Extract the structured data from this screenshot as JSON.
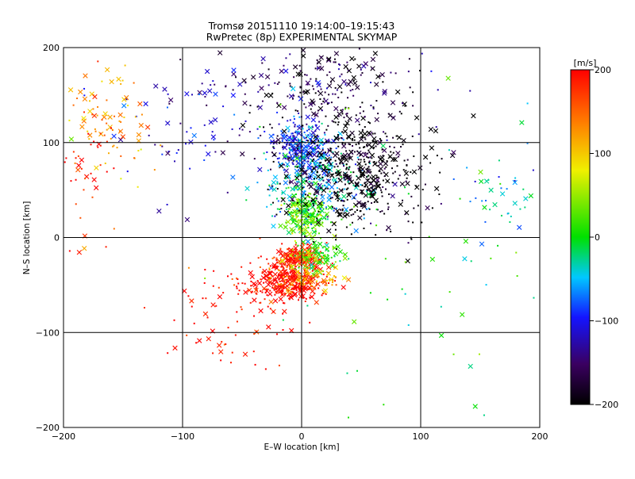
{
  "chart_data": {
    "type": "scatter",
    "title": "Tromsø 20151110 19:14:00–19:15:43",
    "subtitle": "RwPretec (8p) EXPERIMENTAL SKYMAP",
    "xlabel": "E–W location [km]",
    "ylabel": "N–S location [km]",
    "xlim": [
      -200,
      200
    ],
    "ylim": [
      -200,
      200
    ],
    "xticks": [
      "−200",
      "−100",
      "0",
      "100",
      "200"
    ],
    "yticks": [
      "200",
      "100",
      "0",
      "−100",
      "−200"
    ],
    "grid": true,
    "marker_types": [
      "x",
      "dot"
    ],
    "colorbar": {
      "label": "[m/s]",
      "range": [
        -200,
        200
      ],
      "ticks": [
        "200",
        "100",
        "0",
        "−100",
        "−200"
      ],
      "colormap": [
        "#000000",
        "#3a0060",
        "#1414ff",
        "#00c8ff",
        "#00e000",
        "#f0f000",
        "#ff8000",
        "#ff0000"
      ]
    },
    "clusters": [
      {
        "center": [
          -12,
          -45
        ],
        "spread": [
          15,
          11
        ],
        "value": 200,
        "count": 360
      },
      {
        "center": [
          -2,
          -20
        ],
        "spread": [
          8,
          6
        ],
        "value": 195,
        "count": 170
      },
      {
        "center": [
          12,
          -20
        ],
        "spread": [
          11,
          9
        ],
        "value": 20,
        "count": 110
      },
      {
        "center": [
          5,
          -38
        ],
        "spread": [
          15,
          10
        ],
        "value": 120,
        "count": 90
      },
      {
        "center": [
          3,
          25
        ],
        "spread": [
          9,
          12
        ],
        "value": 30,
        "count": 230
      },
      {
        "center": [
          -1,
          95
        ],
        "spread": [
          11,
          14
        ],
        "value": -95,
        "count": 280
      },
      {
        "center": [
          10,
          60
        ],
        "spread": [
          22,
          22
        ],
        "value": -40,
        "count": 220
      },
      {
        "center": [
          45,
          70
        ],
        "spread": [
          30,
          30
        ],
        "value": -200,
        "count": 560
      },
      {
        "center": [
          25,
          160
        ],
        "spread": [
          35,
          25
        ],
        "value": -170,
        "count": 200
      },
      {
        "center": [
          -60,
          130
        ],
        "spread": [
          55,
          35
        ],
        "value": -130,
        "count": 130
      },
      {
        "center": [
          -170,
          120
        ],
        "spread": [
          22,
          30
        ],
        "value": 120,
        "count": 90
      },
      {
        "center": [
          -180,
          60
        ],
        "spread": [
          15,
          40
        ],
        "value": 180,
        "count": 50
      },
      {
        "center": [
          170,
          40
        ],
        "spread": [
          20,
          25
        ],
        "value": -50,
        "count": 40
      },
      {
        "center": [
          -50,
          -75
        ],
        "spread": [
          30,
          30
        ],
        "value": 195,
        "count": 90
      },
      {
        "center": [
          110,
          -10
        ],
        "spread": [
          80,
          100
        ],
        "value": 0,
        "count": 70
      }
    ]
  }
}
